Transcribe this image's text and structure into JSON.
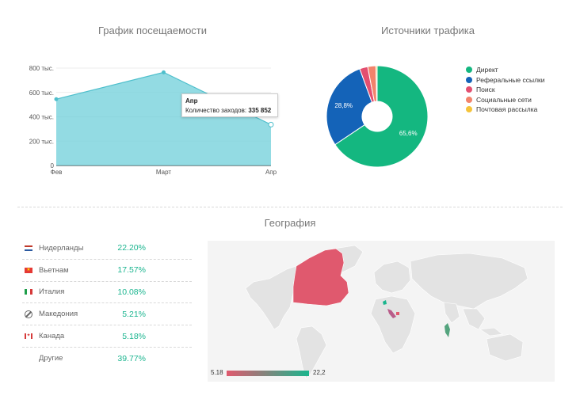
{
  "visits": {
    "title": "График посещаемости",
    "chart_data": {
      "type": "area",
      "categories": [
        "Фев",
        "Март",
        "Апр"
      ],
      "values": [
        545000,
        765000,
        335852
      ],
      "yticks": [
        "0",
        "200 тыс.",
        "400 тыс.",
        "600 тыс.",
        "800 тыс."
      ],
      "ylim": [
        0,
        800000
      ],
      "color": "#6fcfd9"
    },
    "tooltip": {
      "category": "Апр",
      "label": "Количество заходов:",
      "value": "335 852"
    }
  },
  "sources": {
    "title": "Источники трафика",
    "chart_data": {
      "type": "pie",
      "series": [
        {
          "name": "Директ",
          "value": 65.6,
          "label": "65,6%",
          "color": "#14b780"
        },
        {
          "name": "Реферальные ссылки",
          "value": 28.8,
          "label": "28,8%",
          "color": "#1463b8"
        },
        {
          "name": "Поиск",
          "value": 2.6,
          "label": "",
          "color": "#e34f70"
        },
        {
          "name": "Социальные сети",
          "value": 2.6,
          "label": "",
          "color": "#f2836b"
        },
        {
          "name": "Почтовая рассылка",
          "value": 0.4,
          "label": "",
          "color": "#f5c33a"
        }
      ]
    }
  },
  "geo": {
    "title": "География",
    "rows": [
      {
        "country": "Нидерланды",
        "pct": "22.20%",
        "flag": "nl"
      },
      {
        "country": "Вьетнам",
        "pct": "17.57%",
        "flag": "vn"
      },
      {
        "country": "Италия",
        "pct": "10.08%",
        "flag": "it"
      },
      {
        "country": "Македония",
        "pct": "5.21%",
        "flag": "na"
      },
      {
        "country": "Канада",
        "pct": "5.18%",
        "flag": "ca"
      },
      {
        "country": "Другие",
        "pct": "39.77%",
        "flag": ""
      }
    ],
    "scale_min": "5.18",
    "scale_max": "22,2",
    "colors": {
      "low": "#e0596e",
      "high": "#1ab58d",
      "land": "#e3e3e3"
    }
  }
}
